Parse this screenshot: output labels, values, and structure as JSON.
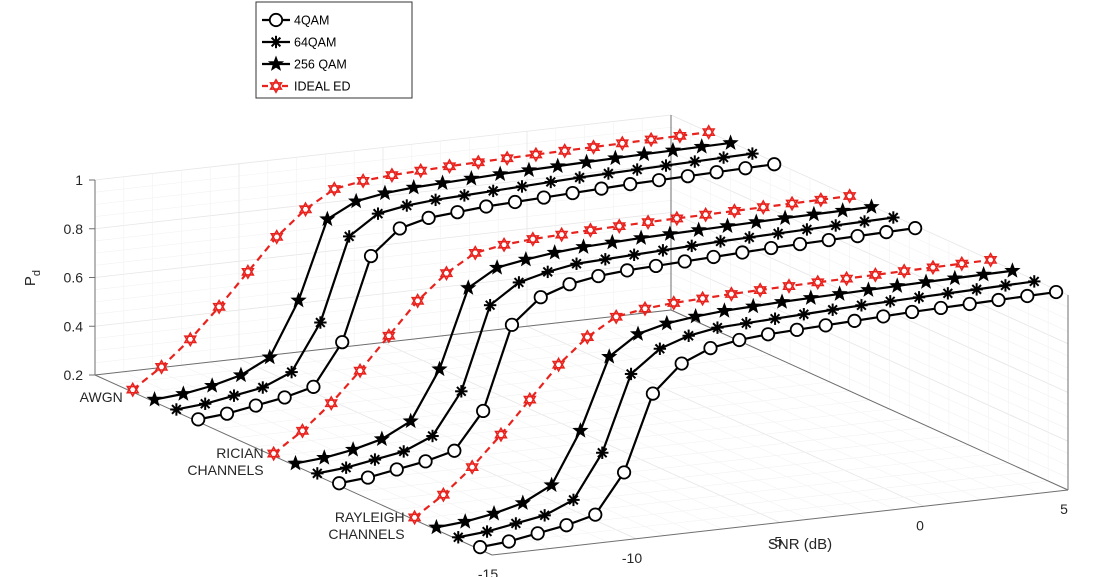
{
  "chart_data": {
    "type": "line",
    "view": "3d",
    "xlabel": "SNR (dB)",
    "ylabel": "P",
    "ylabel_subscript": "d",
    "xlim": [
      -15,
      5
    ],
    "zlim": [
      0.2,
      1
    ],
    "x_ticks": [
      "-15",
      "-10",
      "-5",
      "0",
      "5"
    ],
    "z_ticks": [
      "0.2",
      "0.4",
      "0.6",
      "0.8",
      "1"
    ],
    "channels": [
      "AWGN",
      "RICIAN CHANNELS",
      "RAYLEIGH CHANNELS"
    ],
    "grid": true,
    "legend_position": "top-left",
    "x": [
      -15,
      -14,
      -13,
      -12,
      -11,
      -10,
      -9,
      -8,
      -7,
      -6,
      -5,
      -4,
      -3,
      -2,
      -1,
      0,
      1,
      2,
      3,
      4,
      5
    ],
    "series": [
      {
        "name": "4QAM",
        "color": "#000000",
        "marker": "circle",
        "values": [
          [
            0.21,
            0.22,
            0.24,
            0.26,
            0.29,
            0.46,
            0.8,
            0.9,
            0.93,
            0.94,
            0.95,
            0.955,
            0.96,
            0.965,
            0.97,
            0.975,
            0.978,
            0.981,
            0.984,
            0.987,
            0.99
          ],
          [
            0.21,
            0.22,
            0.24,
            0.26,
            0.29,
            0.44,
            0.78,
            0.88,
            0.92,
            0.94,
            0.95,
            0.955,
            0.96,
            0.965,
            0.97,
            0.975,
            0.978,
            0.981,
            0.984,
            0.987,
            0.99
          ],
          [
            0.21,
            0.22,
            0.24,
            0.26,
            0.29,
            0.45,
            0.76,
            0.87,
            0.92,
            0.94,
            0.95,
            0.955,
            0.96,
            0.965,
            0.97,
            0.975,
            0.978,
            0.981,
            0.984,
            0.987,
            0.99
          ]
        ]
      },
      {
        "name": "64QAM",
        "color": "#000000",
        "marker": "asterisk",
        "values": [
          [
            0.21,
            0.22,
            0.24,
            0.26,
            0.31,
            0.5,
            0.84,
            0.92,
            0.94,
            0.95,
            0.955,
            0.96,
            0.965,
            0.97,
            0.975,
            0.978,
            0.981,
            0.984,
            0.987,
            0.99,
            0.993
          ],
          [
            0.21,
            0.22,
            0.24,
            0.26,
            0.31,
            0.48,
            0.82,
            0.9,
            0.93,
            0.95,
            0.955,
            0.96,
            0.965,
            0.97,
            0.975,
            0.978,
            0.981,
            0.984,
            0.987,
            0.99,
            0.993
          ],
          [
            0.21,
            0.22,
            0.24,
            0.26,
            0.31,
            0.49,
            0.8,
            0.89,
            0.93,
            0.95,
            0.955,
            0.96,
            0.965,
            0.97,
            0.975,
            0.978,
            0.981,
            0.984,
            0.987,
            0.99,
            0.993
          ]
        ]
      },
      {
        "name": "256 QAM",
        "color": "#000000",
        "marker": "star",
        "values": [
          [
            0.21,
            0.22,
            0.24,
            0.27,
            0.33,
            0.55,
            0.87,
            0.93,
            0.95,
            0.96,
            0.965,
            0.97,
            0.975,
            0.978,
            0.981,
            0.984,
            0.987,
            0.99,
            0.992,
            0.994,
            0.996
          ],
          [
            0.21,
            0.22,
            0.24,
            0.27,
            0.33,
            0.53,
            0.85,
            0.92,
            0.94,
            0.955,
            0.965,
            0.97,
            0.975,
            0.978,
            0.981,
            0.984,
            0.987,
            0.99,
            0.992,
            0.994,
            0.996
          ],
          [
            0.21,
            0.22,
            0.24,
            0.27,
            0.33,
            0.54,
            0.83,
            0.91,
            0.94,
            0.955,
            0.965,
            0.97,
            0.975,
            0.978,
            0.981,
            0.984,
            0.987,
            0.99,
            0.992,
            0.994,
            0.996
          ]
        ]
      },
      {
        "name": "IDEAL ED",
        "color": "#e8231e",
        "marker": "hexagram",
        "line_style": "dashed",
        "values": [
          [
            0.21,
            0.29,
            0.39,
            0.51,
            0.64,
            0.77,
            0.87,
            0.94,
            0.96,
            0.97,
            0.975,
            0.98,
            0.983,
            0.986,
            0.988,
            0.99,
            0.992,
            0.994,
            0.996,
            0.998,
            1.0
          ],
          [
            0.21,
            0.29,
            0.39,
            0.51,
            0.64,
            0.77,
            0.87,
            0.94,
            0.96,
            0.97,
            0.975,
            0.98,
            0.983,
            0.986,
            0.988,
            0.99,
            0.992,
            0.994,
            0.996,
            0.998,
            1.0
          ],
          [
            0.21,
            0.29,
            0.39,
            0.51,
            0.64,
            0.77,
            0.87,
            0.94,
            0.96,
            0.97,
            0.975,
            0.98,
            0.983,
            0.986,
            0.988,
            0.99,
            0.992,
            0.994,
            0.996,
            0.998,
            1.0
          ]
        ]
      }
    ]
  }
}
